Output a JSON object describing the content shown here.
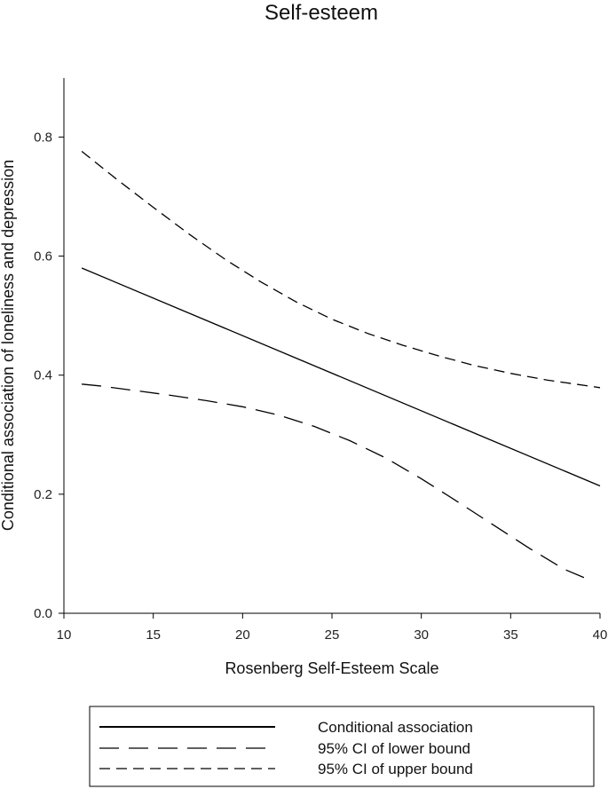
{
  "chart_data": {
    "type": "line",
    "title": "Self-esteem",
    "xlabel": "Rosenberg Self-Esteem Scale",
    "ylabel": "Conditional association of loneliness and depression",
    "xlim": [
      10,
      40
    ],
    "ylim": [
      0.0,
      0.9
    ],
    "xticks": [
      10,
      15,
      20,
      25,
      30,
      35,
      40
    ],
    "yticks": [
      0.0,
      0.2,
      0.4,
      0.6,
      0.8
    ],
    "ytick_labels": [
      "0.0",
      "0.2",
      "0.4",
      "0.6",
      "0.8"
    ],
    "grid": false,
    "legend_position": "bottom",
    "series": [
      {
        "name": "Conditional association",
        "style": "solid",
        "x": [
          11,
          40
        ],
        "y": [
          0.58,
          0.214
        ]
      },
      {
        "name": "95% CI of lower bound",
        "style": "long-dash",
        "x": [
          11,
          12,
          14,
          16,
          18,
          20,
          22,
          24,
          26,
          28,
          30,
          32,
          34,
          36,
          38,
          39.5
        ],
        "y": [
          0.385,
          0.382,
          0.374,
          0.366,
          0.357,
          0.347,
          0.333,
          0.314,
          0.29,
          0.261,
          0.226,
          0.188,
          0.149,
          0.11,
          0.074,
          0.055
        ]
      },
      {
        "name": "95% CI of upper bound",
        "style": "short-dash",
        "x": [
          11,
          13,
          15,
          17,
          19,
          21,
          23,
          25,
          27,
          29,
          31,
          33,
          35,
          37,
          40
        ],
        "y": [
          0.776,
          0.728,
          0.682,
          0.637,
          0.595,
          0.557,
          0.523,
          0.494,
          0.47,
          0.45,
          0.432,
          0.416,
          0.403,
          0.392,
          0.379
        ]
      }
    ]
  }
}
